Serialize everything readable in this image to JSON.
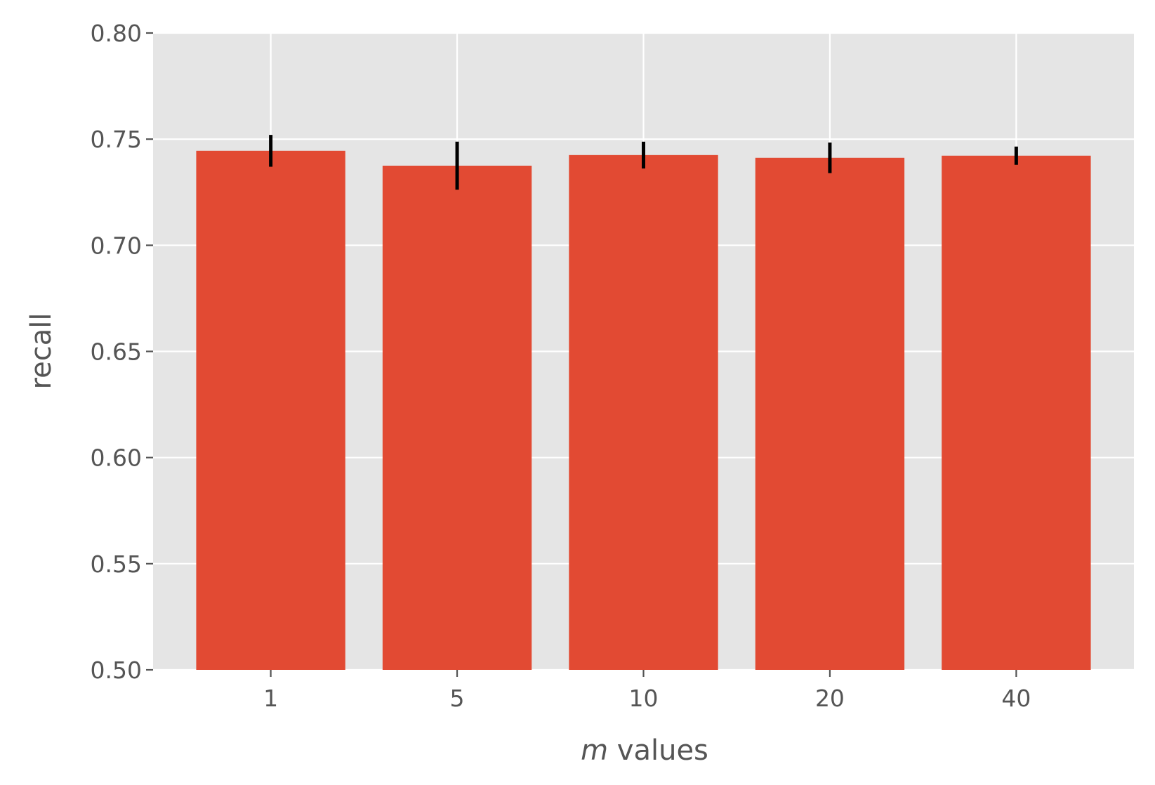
{
  "chart_data": {
    "type": "bar",
    "title": "",
    "xlabel": {
      "var": "m",
      "rest": " values"
    },
    "ylabel": "recall",
    "categories": [
      "1",
      "5",
      "10",
      "20",
      "40"
    ],
    "values": [
      0.7445,
      0.7375,
      0.7425,
      0.7412,
      0.7422
    ],
    "errors": [
      0.0075,
      0.0113,
      0.0063,
      0.0072,
      0.0043
    ],
    "ylim": [
      0.5,
      0.8
    ],
    "yticks": [
      "0.50",
      "0.55",
      "0.60",
      "0.65",
      "0.70",
      "0.75",
      "0.80"
    ],
    "grid": true,
    "colors": {
      "bar": "#E24A33",
      "error": "#000000",
      "plot_bg": "#E5E5E5",
      "grid": "#FFFFFF",
      "text": "#555555"
    }
  }
}
